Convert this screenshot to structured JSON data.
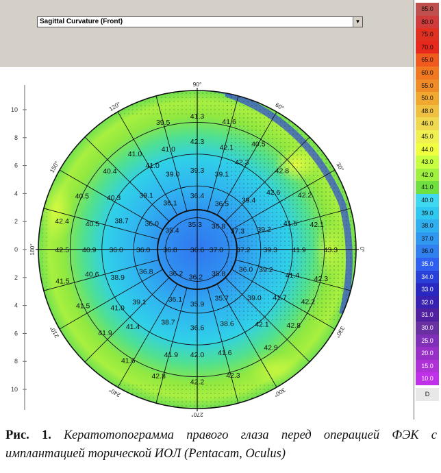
{
  "map_type_select": {
    "value": "Sagittal Curvature (Front)"
  },
  "y_axis_ticks": [
    "10",
    "8",
    "6",
    "4",
    "2",
    "0",
    "2",
    "4",
    "6",
    "8",
    "10"
  ],
  "angle_labels": [
    "90°",
    "60°",
    "30°",
    "0°",
    "330°",
    "300°",
    "270°",
    "240°",
    "210°",
    "180°",
    "150°",
    "120°"
  ],
  "legend": {
    "values": [
      "85.0",
      "80.0",
      "75.0",
      "70.0",
      "65.0",
      "60.0",
      "55.0",
      "50.0",
      "48.0",
      "46.0",
      "45.0",
      "44.0",
      "43.0",
      "42.0",
      "41.0",
      "40.0",
      "39.0",
      "38.0",
      "37.0",
      "36.0",
      "35.0",
      "34.0",
      "33.0",
      "32.0",
      "31.0",
      "30.0",
      "25.0",
      "20.0",
      "15.0",
      "10.0"
    ],
    "colors": [
      "#c0504d",
      "#d03c3c",
      "#e03020",
      "#e8281c",
      "#f05a1e",
      "#f07820",
      "#f08c28",
      "#f0a830",
      "#f0c040",
      "#f0d850",
      "#f0f050",
      "#f0ff40",
      "#c8ff40",
      "#a0f040",
      "#70e040",
      "#40d8f0",
      "#30c8f0",
      "#30b0f0",
      "#3098f0",
      "#3080f0",
      "#3060f0",
      "#2840d8",
      "#2828c0",
      "#3820b0",
      "#5020a0",
      "#6830a0",
      "#8030b8",
      "#9830c8",
      "#b030d8",
      "#c030e8"
    ],
    "footer": "D"
  },
  "readings": [
    {
      "text": "41.3",
      "a": 90,
      "r": 0.84
    },
    {
      "text": "39.5",
      "a": 105,
      "r": 0.83
    },
    {
      "text": "41.6",
      "a": 76,
      "r": 0.83
    },
    {
      "text": "42.3",
      "a": 90,
      "r": 0.68
    },
    {
      "text": "41.0",
      "a": 106,
      "r": 0.66
    },
    {
      "text": "42.1",
      "a": 74,
      "r": 0.67
    },
    {
      "text": "41.0",
      "a": 123,
      "r": 0.72
    },
    {
      "text": "40.5",
      "a": 60,
      "r": 0.77
    },
    {
      "text": "41.0",
      "a": 118,
      "r": 0.6
    },
    {
      "text": "42.3",
      "a": 63,
      "r": 0.62
    },
    {
      "text": "40.4",
      "a": 138,
      "r": 0.74
    },
    {
      "text": "42.8",
      "a": 43,
      "r": 0.73
    },
    {
      "text": "39.3",
      "a": 90,
      "r": 0.5
    },
    {
      "text": "39.0",
      "a": 108,
      "r": 0.5
    },
    {
      "text": "39.1",
      "a": 72,
      "r": 0.5
    },
    {
      "text": "40.5",
      "a": 155,
      "r": 0.8
    },
    {
      "text": "40.3",
      "a": 148,
      "r": 0.62
    },
    {
      "text": "42.6",
      "a": 37,
      "r": 0.6
    },
    {
      "text": "42.2",
      "a": 27,
      "r": 0.76
    },
    {
      "text": "39.1",
      "a": 133,
      "r": 0.47
    },
    {
      "text": "39.4",
      "a": 44,
      "r": 0.45
    },
    {
      "text": "36.4",
      "a": 90,
      "r": 0.34
    },
    {
      "text": "36.1",
      "a": 120,
      "r": 0.34
    },
    {
      "text": "36.5",
      "a": 62,
      "r": 0.33
    },
    {
      "text": "42.4",
      "a": 168,
      "r": 0.87
    },
    {
      "text": "40.5",
      "a": 166,
      "r": 0.68
    },
    {
      "text": "38.7",
      "a": 159,
      "r": 0.51
    },
    {
      "text": "36.0",
      "a": 150,
      "r": 0.33
    },
    {
      "text": "35.3",
      "a": 95,
      "r": 0.16
    },
    {
      "text": "35.4",
      "a": 142,
      "r": 0.2
    },
    {
      "text": "36.8",
      "a": 48,
      "r": 0.2
    },
    {
      "text": "37.3",
      "a": 25,
      "r": 0.28
    },
    {
      "text": "39.2",
      "a": 17,
      "r": 0.44
    },
    {
      "text": "41.5",
      "a": 16,
      "r": 0.61
    },
    {
      "text": "42.1",
      "a": 12,
      "r": 0.77
    },
    {
      "text": "42.5",
      "a": 180,
      "r": 0.85
    },
    {
      "text": "40.9",
      "a": 180,
      "r": 0.68
    },
    {
      "text": "36.0",
      "a": 180,
      "r": 0.51
    },
    {
      "text": "36.0",
      "a": 180,
      "r": 0.34
    },
    {
      "text": "36.8",
      "a": 180,
      "r": 0.17
    },
    {
      "text": "36.6",
      "a": 270,
      "r": 0.0
    },
    {
      "text": "37.0",
      "a": 0,
      "r": 0.12
    },
    {
      "text": "37.2",
      "a": 0,
      "r": 0.29
    },
    {
      "text": "39.3",
      "a": 0,
      "r": 0.46
    },
    {
      "text": "41.9",
      "a": 0,
      "r": 0.64
    },
    {
      "text": "43.3",
      "a": 0,
      "r": 0.84
    },
    {
      "text": "41.5",
      "a": 193,
      "r": 0.87
    },
    {
      "text": "40.6",
      "a": 193,
      "r": 0.68
    },
    {
      "text": "38.9",
      "a": 199,
      "r": 0.53
    },
    {
      "text": "36.8",
      "a": 203,
      "r": 0.35
    },
    {
      "text": "36.2",
      "a": 228,
      "r": 0.2
    },
    {
      "text": "36.2",
      "a": 267,
      "r": 0.17
    },
    {
      "text": "35.8",
      "a": 312,
      "r": 0.2
    },
    {
      "text": "36.0",
      "a": 338,
      "r": 0.33
    },
    {
      "text": "39.2",
      "a": 344,
      "r": 0.45
    },
    {
      "text": "41.4",
      "a": 345,
      "r": 0.62
    },
    {
      "text": "42.3",
      "a": 347,
      "r": 0.8
    },
    {
      "text": "39.1",
      "a": 222,
      "r": 0.49
    },
    {
      "text": "36.1",
      "a": 246,
      "r": 0.34
    },
    {
      "text": "35.9",
      "a": 270,
      "r": 0.34
    },
    {
      "text": "35.7",
      "a": 297,
      "r": 0.34
    },
    {
      "text": "39.0",
      "a": 320,
      "r": 0.47
    },
    {
      "text": "41.7",
      "a": 330,
      "r": 0.6
    },
    {
      "text": "42.2",
      "a": 335,
      "r": 0.77
    },
    {
      "text": "41.5",
      "a": 206,
      "r": 0.8
    },
    {
      "text": "41.0",
      "a": 216,
      "r": 0.62
    },
    {
      "text": "38.7",
      "a": 248,
      "r": 0.49
    },
    {
      "text": "36.6",
      "a": 270,
      "r": 0.49
    },
    {
      "text": "38.6",
      "a": 292,
      "r": 0.5
    },
    {
      "text": "41.4",
      "a": 230,
      "r": 0.63
    },
    {
      "text": "42.1",
      "a": 311,
      "r": 0.62
    },
    {
      "text": "42.8",
      "a": 322,
      "r": 0.77
    },
    {
      "text": "41.9",
      "a": 222,
      "r": 0.78
    },
    {
      "text": "41.9",
      "a": 256,
      "r": 0.68
    },
    {
      "text": "42.0",
      "a": 270,
      "r": 0.66
    },
    {
      "text": "41.6",
      "a": 285,
      "r": 0.67
    },
    {
      "text": "42.9",
      "a": 307,
      "r": 0.77
    },
    {
      "text": "41.6",
      "a": 238,
      "r": 0.82
    },
    {
      "text": "42.8",
      "a": 253,
      "r": 0.83
    },
    {
      "text": "42.2",
      "a": 270,
      "r": 0.83
    },
    {
      "text": "42.3",
      "a": 286,
      "r": 0.82
    }
  ],
  "caption": {
    "label": "Рис. 1.",
    "text": "Кератотопограмма правого глаза перед операцией ФЭК с имплантацией торической ИОЛ (Pentacam, Oculus)"
  }
}
